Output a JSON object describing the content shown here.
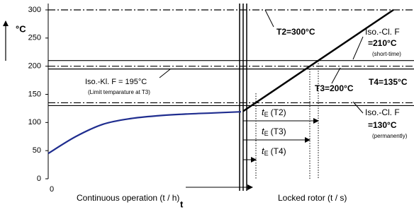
{
  "chart_data": {
    "type": "line",
    "y_label": "°C",
    "ylim": [
      0,
      300
    ],
    "yticks": [
      0,
      50,
      100,
      150,
      200,
      250,
      300
    ],
    "x_origin_label": "0",
    "x_labels": [
      "Continuous operation (t / h)",
      "Locked rotor (t / s)"
    ],
    "x_arrow_label": "t",
    "series": [
      {
        "color": "#1f2d8f",
        "values": [
          45,
          75,
          97,
          107,
          112,
          115,
          117,
          119
        ]
      },
      {
        "color": "#000000",
        "values": [
          120,
          300
        ]
      }
    ],
    "reference_lines": [
      {
        "value": 300,
        "style": "dash-dot"
      },
      {
        "value": 210,
        "style": "solid"
      },
      {
        "value": 200,
        "style": "dash-dot"
      },
      {
        "value": 195,
        "style": "solid"
      },
      {
        "value": 135,
        "style": "dash-dot"
      },
      {
        "value": 130,
        "style": "solid"
      }
    ],
    "annotations": [
      {
        "text": "T2=300°C",
        "bold": true
      },
      {
        "text": "Iso.-Cl. F",
        "bold": false
      },
      {
        "text": "=210°C",
        "bold": true
      },
      {
        "text": "(short-time)",
        "bold": false
      },
      {
        "text": "Iso.-Kl. F = 195°C",
        "bold": false
      },
      {
        "text": "(Limit temparature at T3)",
        "bold": false
      },
      {
        "text": "T3=200°C",
        "bold": true
      },
      {
        "text": "T4=135°C",
        "bold": true
      },
      {
        "text": "Iso.-Cl. F",
        "bold": false
      },
      {
        "text": "=130°C",
        "bold": true
      },
      {
        "text": "(permanently)",
        "bold": false
      }
    ],
    "durations": [
      {
        "symbol": "t",
        "sub": "E",
        "label": "(T2)"
      },
      {
        "symbol": "t",
        "sub": "E",
        "label": "(T3)"
      },
      {
        "symbol": "t",
        "sub": "E",
        "label": "(T4)"
      }
    ]
  }
}
